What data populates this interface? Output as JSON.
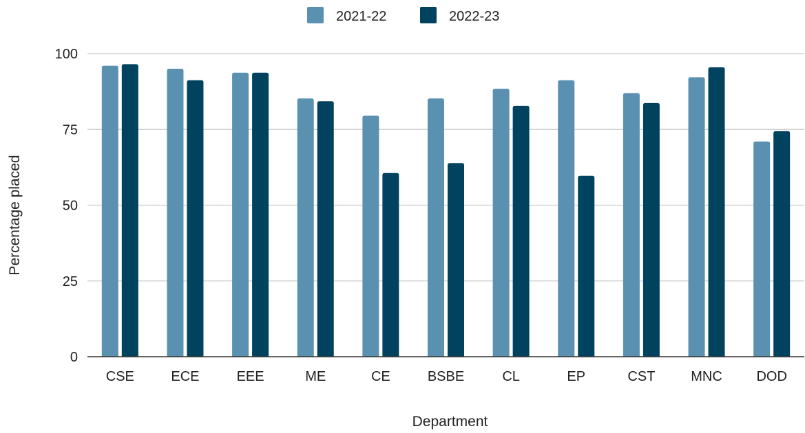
{
  "chart_data": {
    "type": "bar",
    "title": "",
    "xlabel": "Department",
    "ylabel": "Percentage placed",
    "ylim": [
      0,
      100
    ],
    "yticks": [
      0,
      25,
      50,
      75,
      100
    ],
    "grid": true,
    "legend_position": "top-center",
    "categories": [
      "CSE",
      "ECE",
      "EEE",
      "ME",
      "CE",
      "BSBE",
      "CL",
      "EP",
      "CST",
      "MNC",
      "DOD"
    ],
    "series": [
      {
        "name": "2021-22",
        "color": "#5b91b0",
        "values": [
          96,
          95,
          93.7,
          85.2,
          79.5,
          85.2,
          88.4,
          91.2,
          87,
          92.2,
          71
        ]
      },
      {
        "name": "2022-23",
        "color": "#01425e",
        "values": [
          96.5,
          91.2,
          93.7,
          84.3,
          60.6,
          63.9,
          82.8,
          59.7,
          83.7,
          95.5,
          74.4
        ]
      }
    ]
  }
}
